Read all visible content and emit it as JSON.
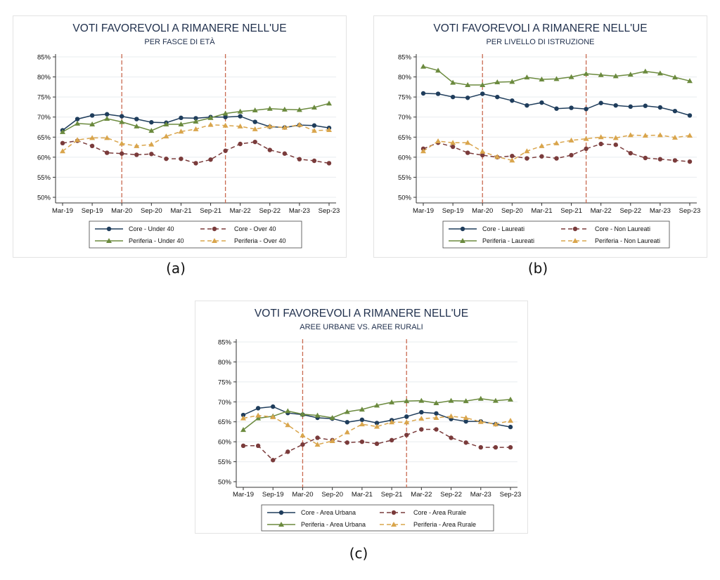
{
  "figure": {
    "captions": [
      "(a)",
      "(b)",
      "(c)"
    ]
  },
  "colors": {
    "core_solid": "#1f3d5c",
    "core_dash": "#7a3b3b",
    "periferia_solid": "#6b8a3e",
    "periferia_dash": "#d9a54c",
    "vline": "#c96a50",
    "grid": "#e8ecef"
  },
  "chart_data": [
    {
      "type": "line",
      "title": "VOTI FAVOREVOLI A RIMANERE NELL'UE",
      "subtitle": "PER FASCE DI ETÀ",
      "x_ticks": [
        "Mar-19",
        "Sep-19",
        "Mar-20",
        "Sep-20",
        "Mar-21",
        "Sep-21",
        "Mar-22",
        "Sep-22",
        "Mar-23",
        "Sep-23"
      ],
      "y_ticks": [
        "50%",
        "55%",
        "60%",
        "65%",
        "70%",
        "75%",
        "80%",
        "85%"
      ],
      "ylim": [
        50,
        85
      ],
      "grid": true,
      "legend_position": "bottom",
      "event_lines": [
        "Mar-20",
        "Dec-21"
      ],
      "x": [
        "Mar-19",
        "Jun-19",
        "Sep-19",
        "Dec-19",
        "Mar-20",
        "Jun-20",
        "Sep-20",
        "Dec-20",
        "Mar-21",
        "Jun-21",
        "Sep-21",
        "Dec-21",
        "Mar-22",
        "Jun-22",
        "Sep-22",
        "Dec-22",
        "Mar-23",
        "Jun-23",
        "Sep-23"
      ],
      "series": [
        {
          "name": "Core - Under 40",
          "style": "core_solid",
          "values": [
            66.7,
            69.5,
            70.4,
            70.7,
            70.2,
            69.5,
            68.7,
            68.6,
            69.8,
            69.7,
            70.0,
            70.0,
            70.2,
            68.8,
            67.6,
            67.4,
            68.0,
            67.9,
            67.3
          ]
        },
        {
          "name": "Core - Over 40",
          "style": "core_dash",
          "values": [
            63.5,
            64.1,
            62.8,
            61.1,
            60.9,
            60.6,
            60.8,
            59.6,
            59.6,
            58.5,
            59.4,
            61.6,
            63.3,
            63.8,
            61.8,
            60.9,
            59.5,
            59.1,
            58.5
          ]
        },
        {
          "name": "Periferia - Under 40",
          "style": "periferia_solid",
          "values": [
            66.3,
            68.4,
            68.2,
            69.6,
            68.8,
            67.7,
            66.6,
            68.2,
            68.2,
            68.9,
            69.8,
            70.9,
            71.4,
            71.7,
            72.1,
            71.9,
            71.8,
            72.4,
            73.4
          ]
        },
        {
          "name": "Periferia - Over 40",
          "style": "periferia_dash",
          "values": [
            61.5,
            64.3,
            64.8,
            64.8,
            63.4,
            62.8,
            63.2,
            65.2,
            66.4,
            67.0,
            68.1,
            67.9,
            67.7,
            67.0,
            67.7,
            67.4,
            68.1,
            66.6,
            66.8
          ]
        }
      ]
    },
    {
      "type": "line",
      "title": "VOTI FAVOREVOLI A RIMANERE NELL'UE",
      "subtitle": "PER LIVELLO DI ISTRUZIONE",
      "x_ticks": [
        "Mar-19",
        "Sep-19",
        "Mar-20",
        "Sep-20",
        "Mar-21",
        "Sep-21",
        "Mar-22",
        "Sep-22",
        "Mar-23",
        "Sep-23"
      ],
      "y_ticks": [
        "50%",
        "55%",
        "60%",
        "65%",
        "70%",
        "75%",
        "80%",
        "85%"
      ],
      "ylim": [
        50,
        85
      ],
      "grid": true,
      "legend_position": "bottom",
      "event_lines": [
        "Mar-20",
        "Dec-21"
      ],
      "x": [
        "Mar-19",
        "Jun-19",
        "Sep-19",
        "Dec-19",
        "Mar-20",
        "Jun-20",
        "Sep-20",
        "Dec-20",
        "Mar-21",
        "Jun-21",
        "Sep-21",
        "Dec-21",
        "Mar-22",
        "Jun-22",
        "Sep-22",
        "Dec-22",
        "Mar-23",
        "Jun-23",
        "Sep-23"
      ],
      "series": [
        {
          "name": "Core - Laureati",
          "style": "core_solid",
          "values": [
            75.9,
            75.8,
            75.0,
            74.8,
            75.8,
            75.0,
            74.1,
            72.9,
            73.6,
            72.1,
            72.3,
            72.0,
            73.5,
            72.9,
            72.6,
            72.8,
            72.4,
            71.5,
            70.4
          ]
        },
        {
          "name": "Core - Non Laureati",
          "style": "core_dash",
          "values": [
            62.1,
            63.6,
            62.6,
            61.1,
            60.5,
            60.0,
            60.3,
            59.7,
            60.2,
            59.7,
            60.5,
            62.1,
            63.3,
            63.1,
            61.0,
            59.8,
            59.5,
            59.2,
            58.9
          ]
        },
        {
          "name": "Periferia - Laureati",
          "style": "periferia_solid",
          "values": [
            82.6,
            81.6,
            78.6,
            78.0,
            78.0,
            78.7,
            78.8,
            79.9,
            79.4,
            79.5,
            80.0,
            80.8,
            80.5,
            80.2,
            80.6,
            81.4,
            80.9,
            79.9,
            79.0
          ]
        },
        {
          "name": "Periferia - Non Laureati",
          "style": "periferia_dash",
          "values": [
            61.5,
            64.0,
            63.6,
            63.6,
            61.4,
            60.1,
            59.2,
            61.5,
            62.8,
            63.5,
            64.2,
            64.6,
            65.0,
            64.8,
            65.5,
            65.4,
            65.5,
            64.9,
            65.4
          ]
        }
      ]
    },
    {
      "type": "line",
      "title": "VOTI FAVOREVOLI A RIMANERE NELL'UE",
      "subtitle": "AREE URBANE VS. AREE RURALI",
      "x_ticks": [
        "Mar-19",
        "Sep-19",
        "Mar-20",
        "Sep-20",
        "Mar-21",
        "Sep-21",
        "Mar-22",
        "Sep-22",
        "Mar-23",
        "Sep-23"
      ],
      "y_ticks": [
        "50%",
        "55%",
        "60%",
        "65%",
        "70%",
        "75%",
        "80%",
        "85%"
      ],
      "ylim": [
        50,
        85
      ],
      "grid": true,
      "legend_position": "bottom",
      "event_lines": [
        "Mar-20",
        "Dec-21"
      ],
      "x": [
        "Mar-19",
        "Jun-19",
        "Sep-19",
        "Dec-19",
        "Mar-20",
        "Jun-20",
        "Sep-20",
        "Dec-20",
        "Mar-21",
        "Jun-21",
        "Sep-21",
        "Dec-21",
        "Mar-22",
        "Jun-22",
        "Sep-22",
        "Dec-22",
        "Mar-23",
        "Jun-23",
        "Sep-23"
      ],
      "series": [
        {
          "name": "Core - Area Urbana",
          "style": "core_solid",
          "values": [
            66.7,
            68.4,
            68.8,
            67.2,
            66.8,
            66.0,
            65.8,
            64.9,
            65.5,
            64.7,
            65.4,
            66.3,
            67.4,
            67.1,
            65.7,
            65.1,
            65.1,
            64.4,
            63.7
          ]
        },
        {
          "name": "Core - Area Rurale",
          "style": "core_dash",
          "values": [
            59.0,
            59.0,
            55.4,
            57.5,
            59.3,
            61.0,
            60.4,
            59.8,
            60.0,
            59.5,
            60.4,
            61.7,
            63.1,
            63.1,
            61.0,
            59.8,
            58.6,
            58.6,
            58.6
          ]
        },
        {
          "name": "Periferia - Area Urbana",
          "style": "periferia_solid",
          "values": [
            63.0,
            65.9,
            66.4,
            67.7,
            66.9,
            66.6,
            66.0,
            67.5,
            68.1,
            69.1,
            69.9,
            70.2,
            70.3,
            69.7,
            70.3,
            70.2,
            70.8,
            70.3,
            70.6
          ]
        },
        {
          "name": "Periferia - Area Rurale",
          "style": "periferia_dash",
          "values": [
            65.9,
            66.6,
            66.2,
            64.2,
            61.6,
            59.3,
            60.2,
            62.4,
            64.4,
            63.8,
            64.9,
            64.9,
            65.8,
            66.0,
            66.4,
            66.0,
            65.0,
            64.4,
            65.3
          ]
        }
      ]
    }
  ]
}
